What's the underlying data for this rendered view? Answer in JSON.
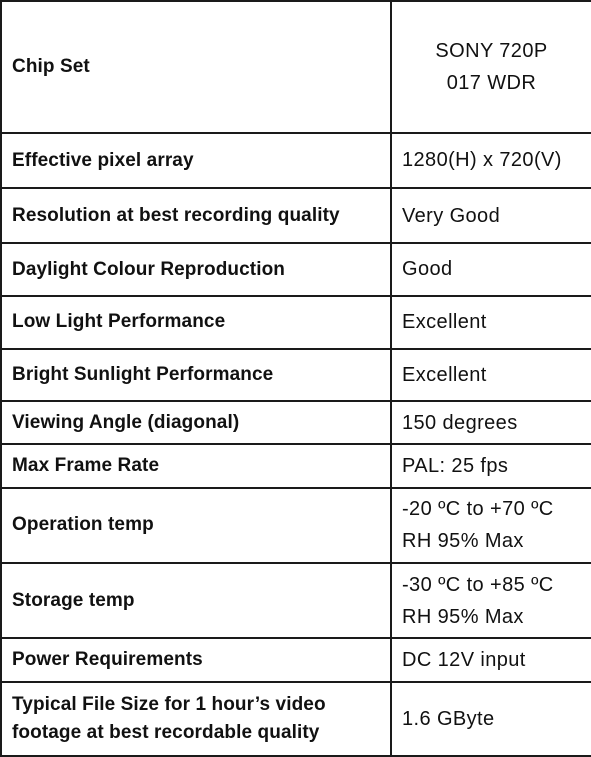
{
  "rows": [
    {
      "label": [
        "Chip Set"
      ],
      "value": [
        "SONY 720P",
        "017 WDR"
      ],
      "align": "center"
    },
    {
      "label": [
        "Effective pixel array"
      ],
      "value": [
        "1280(H) x 720(V)"
      ]
    },
    {
      "label": [
        "Resolution at best recording quality"
      ],
      "value": [
        "Very Good"
      ]
    },
    {
      "label": [
        "Daylight Colour Reproduction"
      ],
      "value": [
        "Good"
      ]
    },
    {
      "label": [
        "Low Light Performance"
      ],
      "value": [
        "Excellent"
      ]
    },
    {
      "label": [
        "Bright Sunlight Performance"
      ],
      "value": [
        "Excellent"
      ]
    },
    {
      "label": [
        "Viewing Angle (diagonal)"
      ],
      "value": [
        "150 degrees"
      ]
    },
    {
      "label": [
        "Max Frame Rate"
      ],
      "value": [
        "PAL: 25 fps"
      ]
    },
    {
      "label": [
        "Operation temp"
      ],
      "value": [
        "-20 ºC to +70 ºC",
        "RH 95% Max"
      ]
    },
    {
      "label": [
        "Storage temp"
      ],
      "value": [
        "-30 ºC to +85 ºC",
        "RH 95% Max"
      ]
    },
    {
      "label": [
        "Power Requirements"
      ],
      "value": [
        "DC 12V input"
      ]
    },
    {
      "label": [
        "Typical File Size for 1 hour’s video",
        "footage at best recordable quality"
      ],
      "value": [
        "1.6 GByte"
      ]
    }
  ]
}
